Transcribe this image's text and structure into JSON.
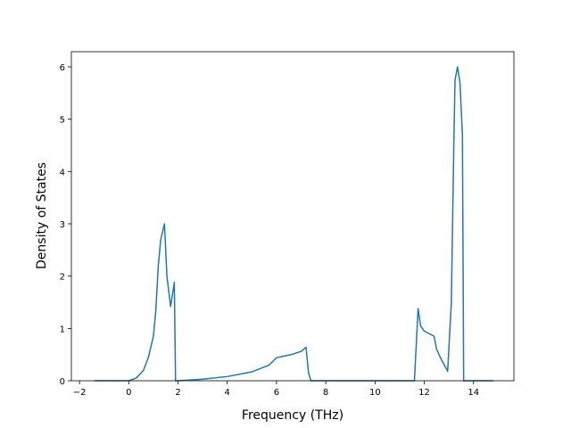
{
  "chart_data": {
    "type": "line",
    "xlabel": "Frequency (THz)",
    "ylabel": "Density of States",
    "xlim": [
      -2.33,
      15.64
    ],
    "ylim": [
      0,
      6.29
    ],
    "xticks": [
      {
        "value": -2,
        "label": "−2"
      },
      0,
      2,
      4,
      6,
      8,
      10,
      12,
      14
    ],
    "yticks": [
      0,
      1,
      2,
      3,
      4,
      5,
      6
    ],
    "series": [
      {
        "color": "#1f77b4",
        "x": [
          -1.4,
          0,
          0.3,
          0.6,
          0.8,
          1.0,
          1.1,
          1.2,
          1.3,
          1.45,
          1.55,
          1.7,
          1.85,
          1.9,
          2.0,
          3,
          4,
          5,
          5.7,
          6.0,
          6.2,
          6.6,
          7.0,
          7.2,
          7.3,
          7.4,
          11.6,
          11.75,
          11.85,
          12.0,
          12.4,
          12.5,
          12.7,
          12.95,
          13.1,
          13.2,
          13.25,
          13.35,
          13.45,
          13.55,
          13.6,
          14.8
        ],
        "values": [
          0,
          0,
          0.05,
          0.2,
          0.45,
          0.85,
          1.35,
          2.2,
          2.7,
          3.0,
          2.0,
          1.42,
          1.88,
          0,
          0,
          0.03,
          0.08,
          0.17,
          0.3,
          0.44,
          0.46,
          0.5,
          0.56,
          0.64,
          0.15,
          0,
          0,
          1.38,
          1.05,
          0.95,
          0.85,
          0.6,
          0.4,
          0.18,
          1.5,
          4.5,
          5.75,
          6.0,
          5.7,
          4.7,
          0,
          0
        ]
      }
    ]
  }
}
